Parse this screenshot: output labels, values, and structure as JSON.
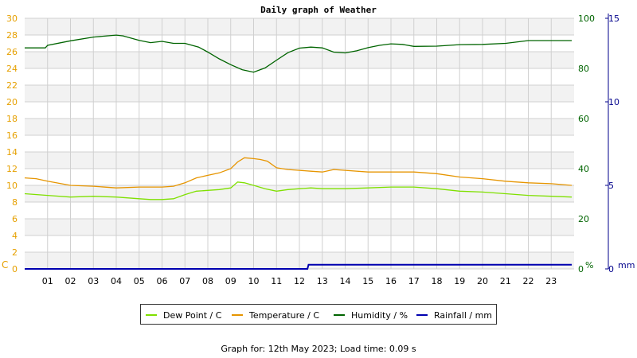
{
  "page": {
    "title": "Daily graph of Weather",
    "footer": "Graph for: 12th May 2023; Load time: 0.09 s"
  },
  "colors": {
    "left_axis": "#e6a000",
    "humidity_axis": "#006400",
    "rain_axis": "#00008b",
    "dew_point": "#7fe000",
    "temperature": "#e69500",
    "humidity": "#006400",
    "rainfall": "#0000b0",
    "band": "#f2f2f2",
    "grid": "#d0d0d0"
  },
  "chart_data": {
    "type": "line",
    "title": "Daily graph of Weather",
    "xlabel": "",
    "x_ticks": [
      "01",
      "02",
      "03",
      "04",
      "05",
      "06",
      "07",
      "08",
      "09",
      "10",
      "11",
      "12",
      "13",
      "14",
      "15",
      "16",
      "17",
      "18",
      "19",
      "20",
      "21",
      "22",
      "23"
    ],
    "xlim": [
      0,
      24
    ],
    "axes": {
      "left": {
        "label": "C",
        "ticks": [
          0,
          2,
          4,
          6,
          8,
          10,
          12,
          14,
          16,
          18,
          20,
          22,
          24,
          26,
          28,
          30
        ],
        "ylim": [
          0,
          30
        ]
      },
      "right_humidity": {
        "label": "%",
        "ticks": [
          0,
          20,
          40,
          60,
          80,
          100
        ],
        "ylim": [
          0,
          100
        ]
      },
      "right_rain": {
        "label": "mm",
        "ticks": [
          0,
          5,
          10,
          15
        ],
        "ylim": [
          0,
          15
        ]
      }
    },
    "grid": true,
    "legend": "bottom",
    "series": [
      {
        "name": "Dew Point / C",
        "axis": "left",
        "x": [
          0,
          1,
          2,
          3,
          4,
          5,
          5.5,
          6,
          6.5,
          7,
          7.5,
          8,
          8.5,
          9,
          9.3,
          9.6,
          10,
          10.5,
          11,
          11.5,
          12,
          12.5,
          13,
          13.5,
          14,
          15,
          16,
          17,
          18,
          19,
          20,
          21,
          22,
          23,
          23.9
        ],
        "y": [
          9.0,
          8.8,
          8.6,
          8.7,
          8.6,
          8.4,
          8.3,
          8.3,
          8.4,
          8.9,
          9.3,
          9.4,
          9.5,
          9.7,
          10.4,
          10.3,
          10.0,
          9.6,
          9.3,
          9.5,
          9.6,
          9.7,
          9.6,
          9.6,
          9.6,
          9.7,
          9.8,
          9.8,
          9.6,
          9.3,
          9.2,
          9.0,
          8.8,
          8.7,
          8.6
        ]
      },
      {
        "name": "Temperature / C",
        "axis": "left",
        "x": [
          0,
          0.5,
          1,
          2,
          3,
          4,
          5,
          6,
          6.5,
          7,
          7.5,
          8,
          8.5,
          9,
          9.3,
          9.6,
          10,
          10.3,
          10.6,
          11,
          11.5,
          12,
          12.5,
          13,
          13.5,
          14,
          15,
          16,
          17,
          18,
          19,
          20,
          21,
          22,
          23,
          23.9
        ],
        "y": [
          10.9,
          10.8,
          10.5,
          10.0,
          9.9,
          9.7,
          9.8,
          9.8,
          9.9,
          10.3,
          10.9,
          11.2,
          11.5,
          12.0,
          12.8,
          13.3,
          13.2,
          13.1,
          12.9,
          12.1,
          11.9,
          11.8,
          11.7,
          11.6,
          11.9,
          11.8,
          11.6,
          11.6,
          11.6,
          11.4,
          11.0,
          10.8,
          10.5,
          10.3,
          10.2,
          10.0
        ]
      },
      {
        "name": "Humidity / %",
        "axis": "right_humidity",
        "x": [
          0,
          0.9,
          1,
          2,
          3,
          4,
          4.3,
          5,
          5.5,
          6,
          6.5,
          7,
          7.6,
          8,
          8.5,
          9,
          9.5,
          10,
          10.5,
          11,
          11.5,
          12,
          12.5,
          13,
          13.5,
          14,
          14.5,
          15,
          15.5,
          16,
          16.5,
          17,
          18,
          19,
          20,
          21,
          22,
          23,
          23.9
        ],
        "y": [
          88.2,
          88.2,
          89.2,
          91.0,
          92.5,
          93.3,
          93.0,
          91.2,
          90.3,
          90.8,
          90.0,
          90.0,
          88.5,
          86.5,
          83.8,
          81.5,
          79.5,
          78.5,
          80.2,
          83.3,
          86.3,
          88.1,
          88.5,
          88.2,
          86.5,
          86.2,
          87.0,
          88.3,
          89.2,
          89.8,
          89.6,
          88.8,
          88.9,
          89.5,
          89.6,
          90.0,
          91.1,
          91.1,
          91.1
        ]
      },
      {
        "name": "Rainfall / mm",
        "axis": "right_rain",
        "x": [
          0,
          12.35,
          12.4,
          23.9
        ],
        "y": [
          0,
          0,
          0.25,
          0.25
        ]
      }
    ]
  }
}
